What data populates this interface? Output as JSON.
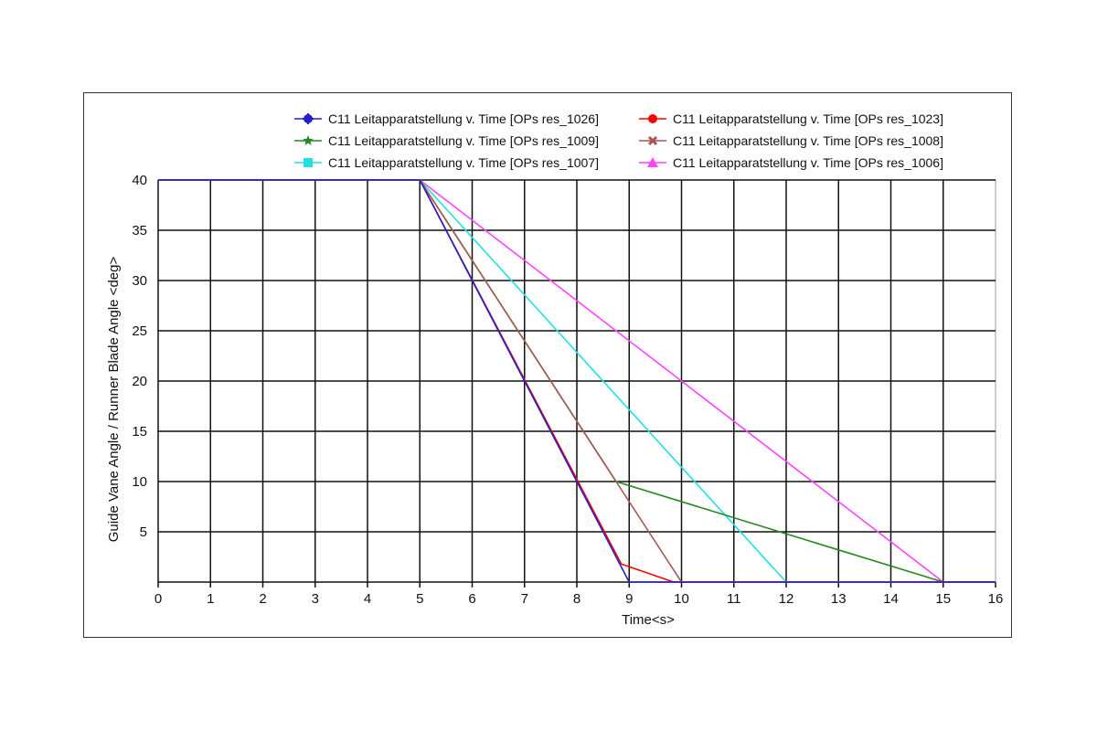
{
  "chart_data": {
    "type": "line",
    "title": "",
    "xlabel": "Time<s>",
    "ylabel": "Guide Vane Angle / Runner Blade Angle <deg>",
    "xlim": [
      0,
      16
    ],
    "ylim": [
      0,
      40
    ],
    "x_ticks": [
      "0",
      "1",
      "2",
      "3",
      "4",
      "5",
      "6",
      "7",
      "8",
      "9",
      "10",
      "11",
      "12",
      "13",
      "14",
      "15",
      "16"
    ],
    "y_ticks": [
      "5",
      "10",
      "15",
      "20",
      "25",
      "30",
      "35",
      "40"
    ],
    "grid": true,
    "legend_position": "top",
    "series": [
      {
        "name": "C11 Leitapparatstellung v. Time [OPs res_1026]",
        "color": "#2222cc",
        "marker": "plus-circle",
        "x": [
          0,
          5,
          9,
          16
        ],
        "y": [
          40,
          40,
          0,
          0
        ]
      },
      {
        "name": "C11 Leitapparatstellung v. Time [OPs res_1023]",
        "color": "#ff0000",
        "marker": "circle",
        "x": [
          0,
          5,
          8.85,
          9.85,
          16
        ],
        "y": [
          40,
          40,
          1.8,
          0,
          0
        ]
      },
      {
        "name": "C11 Leitapparatstellung v. Time [OPs res_1009]",
        "color": "#228822",
        "marker": "star",
        "x": [
          0,
          5,
          8.75,
          15,
          16
        ],
        "y": [
          40,
          40,
          10,
          0,
          0
        ]
      },
      {
        "name": "C11 Leitapparatstellung v. Time [OPs res_1008]",
        "color": "#aa5555",
        "marker": "x",
        "x": [
          0,
          5,
          8.75,
          10,
          16
        ],
        "y": [
          40,
          40,
          10,
          0,
          0
        ]
      },
      {
        "name": "C11 Leitapparatstellung v. Time [OPs res_1007]",
        "color": "#22e0e0",
        "marker": "square",
        "x": [
          0,
          5,
          12,
          16
        ],
        "y": [
          40,
          40,
          0,
          0
        ]
      },
      {
        "name": "C11 Leitapparatstellung v. Time [OPs res_1006]",
        "color": "#ff44ff",
        "marker": "triangle",
        "x": [
          0,
          5,
          15,
          16
        ],
        "y": [
          40,
          40,
          0,
          0
        ]
      }
    ]
  }
}
